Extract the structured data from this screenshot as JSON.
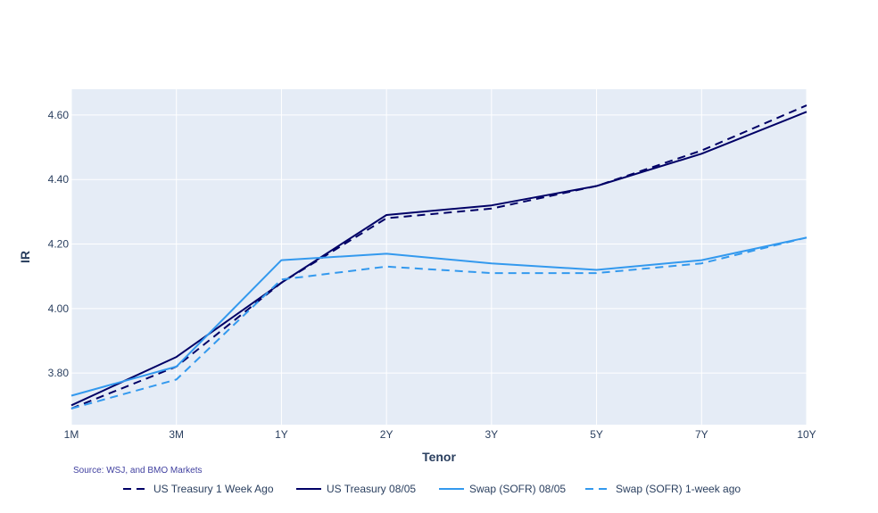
{
  "chart_data": {
    "type": "line",
    "title": "",
    "xlabel": "Tenor",
    "ylabel": "IR",
    "categories": [
      "1M",
      "3M",
      "1Y",
      "2Y",
      "3Y",
      "5Y",
      "7Y",
      "10Y"
    ],
    "ylim": [
      3.64,
      4.68
    ],
    "yticks": [
      3.8,
      4.0,
      4.2,
      4.4,
      4.6
    ],
    "ytick_labels": [
      "3.80",
      "4.00",
      "4.20",
      "4.40",
      "4.60"
    ],
    "grid": true,
    "legend_position": "bottom",
    "source": "Source: WSJ, and BMO Markets",
    "plot_background": "#e5ecf6",
    "series": [
      {
        "name": "US Treasury 1 Week Ago",
        "color": "#000066",
        "dash": "dash",
        "values": [
          3.69,
          3.82,
          4.08,
          4.28,
          4.31,
          4.38,
          4.49,
          4.63
        ]
      },
      {
        "name": "US Treasury 08/05",
        "color": "#000066",
        "dash": "solid",
        "values": [
          3.7,
          3.85,
          4.08,
          4.29,
          4.32,
          4.38,
          4.48,
          4.61
        ]
      },
      {
        "name": "Swap (SOFR) 08/05",
        "color": "#3399ee",
        "dash": "solid",
        "values": [
          3.73,
          3.82,
          4.15,
          4.17,
          4.14,
          4.12,
          4.15,
          4.22
        ]
      },
      {
        "name": "Swap (SOFR) 1-week ago",
        "color": "#3399ee",
        "dash": "dash",
        "values": [
          3.69,
          3.78,
          4.09,
          4.13,
          4.11,
          4.11,
          4.14,
          4.22
        ]
      }
    ]
  }
}
